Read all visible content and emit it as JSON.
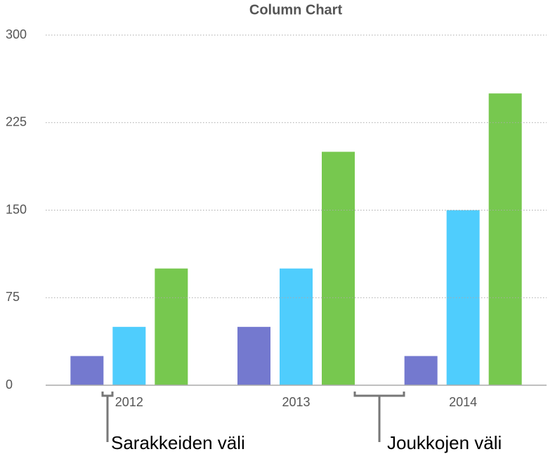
{
  "chart_data": {
    "type": "bar",
    "title": "Column Chart",
    "categories": [
      "2012",
      "2013",
      "2014"
    ],
    "series": [
      {
        "color": "#7479cf",
        "values": [
          25,
          50,
          25
        ]
      },
      {
        "color": "#4fcdfd",
        "values": [
          50,
          100,
          150
        ]
      },
      {
        "color": "#77c84f",
        "values": [
          100,
          200,
          250
        ]
      }
    ],
    "ylim": [
      0,
      300
    ],
    "yticks": [
      0,
      75,
      150,
      225,
      300
    ],
    "grid": true,
    "annotations": [
      "Sarakkeiden väli",
      "Joukkojen väli"
    ]
  }
}
